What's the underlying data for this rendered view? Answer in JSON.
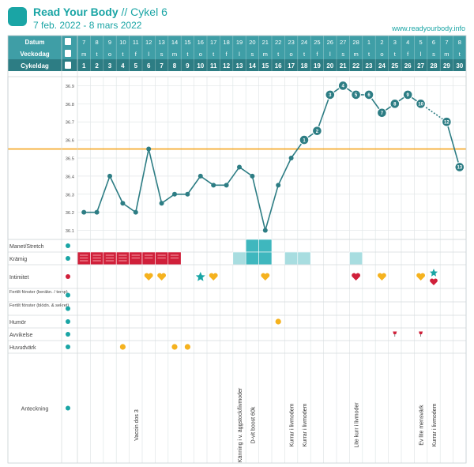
{
  "header": {
    "brand": "Read Your Body",
    "cycle": "// Cykel 6",
    "date_range": "7 feb. 2022 - 8 mars 2022",
    "website": "www.readyourbody.info"
  },
  "colors": {
    "teal": "#1aa5a5",
    "dark_teal": "#2d7d84",
    "cover_line": "#f5a623",
    "red": "#d0203a",
    "light_teal": "#a8dde0",
    "mid_teal": "#3fb7be",
    "gold": "#f5b21e",
    "header_row": "#3f9ea6"
  },
  "chart_data": {
    "type": "line",
    "title": "",
    "xlabel": "",
    "ylabel": "",
    "row_labels": {
      "date": "Datum",
      "weekday": "Veckodag",
      "cycleday": "Cykeldag"
    },
    "dates": [
      "7",
      "8",
      "9",
      "10",
      "11",
      "12",
      "13",
      "14",
      "15",
      "16",
      "17",
      "18",
      "19",
      "20",
      "21",
      "22",
      "23",
      "24",
      "25",
      "26",
      "27",
      "28",
      "1",
      "2",
      "3",
      "4",
      "5",
      "6",
      "7",
      "8"
    ],
    "weekdays": [
      "m",
      "t",
      "o",
      "t",
      "f",
      "l",
      "s",
      "m",
      "t",
      "o",
      "t",
      "f",
      "l",
      "s",
      "m",
      "t",
      "o",
      "t",
      "f",
      "l",
      "s",
      "m",
      "t",
      "o",
      "t",
      "f",
      "l",
      "s",
      "m",
      "t"
    ],
    "cycle_days": [
      "1",
      "2",
      "3",
      "4",
      "5",
      "6",
      "7",
      "8",
      "9",
      "10",
      "11",
      "12",
      "13",
      "14",
      "15",
      "16",
      "17",
      "18",
      "19",
      "20",
      "21",
      "22",
      "23",
      "24",
      "25",
      "26",
      "27",
      "28",
      "29",
      "30"
    ],
    "ylim": [
      36.05,
      36.95
    ],
    "yticks": [
      "36.1",
      "36.2",
      "36.3",
      "36.4",
      "36.5",
      "36.6",
      "36.7",
      "36.8",
      "36.9"
    ],
    "cover_line": 36.55,
    "temperatures": [
      36.2,
      36.2,
      36.4,
      36.25,
      36.2,
      36.55,
      36.25,
      36.3,
      36.3,
      36.4,
      36.35,
      36.35,
      36.45,
      36.4,
      36.1,
      36.35,
      36.5,
      36.6,
      36.65,
      36.85,
      36.9,
      36.85,
      36.85,
      36.75,
      36.8,
      36.85,
      36.8,
      null,
      36.7,
      36.45
    ],
    "high_temp_labels": {
      "17": "1",
      "18": "2",
      "19": "3",
      "20": "4",
      "21": "5",
      "22": "6",
      "23": "7",
      "24": "8",
      "25": "9",
      "26": "10",
      "28": "12",
      "29": "13"
    },
    "dotted_segment": [
      26,
      28
    ],
    "rows": [
      {
        "key": "stretch",
        "label": "Manet/Stretch",
        "icon": "stretch-icon",
        "cells": {
          "13": "mid",
          "14": "mid"
        }
      },
      {
        "key": "cramp",
        "label": "Krämig",
        "icon": "cramp-icon",
        "cells": {
          "0": "bleed-heavy",
          "1": "bleed-heavy",
          "2": "bleed-heavy",
          "3": "bleed-heavy",
          "4": "bleed",
          "5": "bleed",
          "6": "bleed",
          "7": "bleed",
          "12": "light",
          "13": "mid",
          "14": "mid",
          "16": "light",
          "17": "light",
          "21": "light"
        }
      },
      {
        "key": "intimacy",
        "label": "Intimitet",
        "icon": "heart-icon",
        "cells": {
          "5": "gold-heart",
          "6": "gold-heart",
          "9": "star",
          "10": "gold-heart",
          "14": "gold-heart",
          "21": "red-heart",
          "23": "gold-heart",
          "26": "gold-heart",
          "27": "star-heart"
        }
      },
      {
        "key": "fert1",
        "label": "Fertilt fönster (beräkn. / temp)",
        "icon": "chart-icon",
        "cells": {}
      },
      {
        "key": "fert2",
        "label": "Fertilt fönster (blödn. & sekret)",
        "icon": "drop-icon",
        "cells": {}
      },
      {
        "key": "mood",
        "label": "Humör",
        "icon": "smile-icon",
        "cells": {
          "15": "face"
        }
      },
      {
        "key": "deviation",
        "label": "Avvikelse",
        "icon": "thermometer-icon",
        "cells": {
          "24": "wine",
          "26": "wine"
        }
      },
      {
        "key": "headache",
        "label": "Huvudvärk",
        "icon": "face-icon",
        "cells": {
          "3": "face",
          "7": "face",
          "8": "face"
        }
      }
    ],
    "notes_label": "Anteckning",
    "notes": [
      {
        "day": 4,
        "text": "Vaccin dos 3"
      },
      {
        "day": 12,
        "text": "Känning i v. äggstock/livmoder"
      },
      {
        "day": 13,
        "text": "D-vit boost 60k"
      },
      {
        "day": 16,
        "text": "Kurrar i livmodem"
      },
      {
        "day": 17,
        "text": "Kurrar i livmodem"
      },
      {
        "day": 21,
        "text": "Lite kurr i livmoder"
      },
      {
        "day": 26,
        "text": "Ev lite mensvärk"
      },
      {
        "day": 27,
        "text": "Kurrar i livmodem"
      }
    ]
  }
}
